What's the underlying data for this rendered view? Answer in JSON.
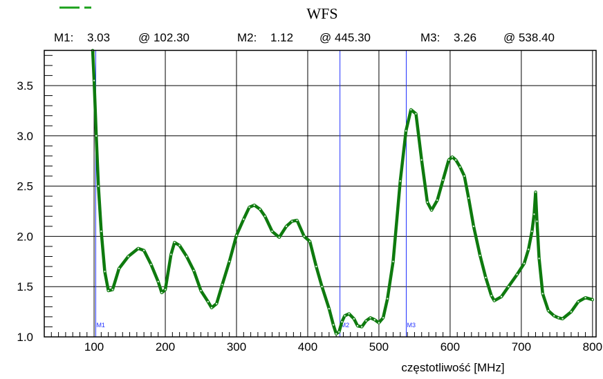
{
  "chart_data": {
    "type": "line",
    "title": "WFS",
    "xlabel": "częstotliwość  [MHz]",
    "ylabel": "",
    "xlim": [
      30,
      805
    ],
    "ylim": [
      1.0,
      3.85
    ],
    "x_ticks": [
      100,
      200,
      300,
      400,
      500,
      600,
      700,
      800
    ],
    "x_tick_labels": [
      "100",
      "200",
      "300",
      "400",
      "500",
      "600",
      "700",
      "800"
    ],
    "y_ticks": [
      1.0,
      1.5,
      2.0,
      2.5,
      3.0,
      3.5
    ],
    "y_tick_labels": [
      "1.0",
      "1.5",
      "2.0",
      "2.5",
      "3.0",
      "3.5"
    ],
    "grid": true,
    "legend": "none",
    "series": [
      {
        "color": "#0e7a0e",
        "x": [
          98,
          100,
          103,
          106,
          110,
          115,
          120,
          126,
          135,
          148,
          162,
          170,
          180,
          190,
          195,
          200,
          208,
          213,
          220,
          230,
          240,
          250,
          260,
          265,
          272,
          280,
          290,
          300,
          310,
          318,
          325,
          333,
          340,
          350,
          360,
          370,
          378,
          385,
          395,
          403,
          412,
          420,
          430,
          436,
          440,
          444,
          448,
          452,
          458,
          465,
          470,
          476,
          482,
          488,
          494,
          500,
          506,
          512,
          520,
          530,
          538,
          545,
          552,
          560,
          568,
          574,
          582,
          590,
          598,
          603,
          608,
          614,
          620,
          626,
          633,
          642,
          650,
          658,
          662,
          672,
          682,
          694,
          704,
          710,
          715,
          718,
          720,
          722,
          725,
          730,
          738,
          746,
          752,
          758,
          770,
          780,
          790,
          800
        ],
        "values": [
          3.85,
          3.55,
          3.0,
          2.5,
          2.05,
          1.65,
          1.46,
          1.47,
          1.68,
          1.8,
          1.88,
          1.86,
          1.72,
          1.55,
          1.44,
          1.47,
          1.82,
          1.94,
          1.91,
          1.8,
          1.66,
          1.46,
          1.35,
          1.29,
          1.33,
          1.52,
          1.75,
          2.01,
          2.17,
          2.29,
          2.31,
          2.27,
          2.2,
          2.05,
          1.99,
          2.1,
          2.15,
          2.16,
          2.0,
          1.95,
          1.7,
          1.5,
          1.28,
          1.12,
          1.03,
          1.05,
          1.15,
          1.21,
          1.23,
          1.18,
          1.11,
          1.1,
          1.16,
          1.19,
          1.17,
          1.14,
          1.19,
          1.38,
          1.75,
          2.55,
          3.05,
          3.26,
          3.22,
          2.76,
          2.34,
          2.26,
          2.36,
          2.56,
          2.76,
          2.79,
          2.76,
          2.69,
          2.6,
          2.38,
          2.1,
          1.81,
          1.59,
          1.41,
          1.36,
          1.4,
          1.5,
          1.62,
          1.73,
          1.87,
          2.05,
          2.22,
          2.44,
          2.15,
          1.78,
          1.43,
          1.26,
          1.21,
          1.19,
          1.18,
          1.25,
          1.35,
          1.39,
          1.37
        ]
      }
    ],
    "markers": [
      {
        "label": "M1",
        "x": 102.3,
        "y": 3.03
      },
      {
        "label": "M2",
        "x": 445.3,
        "y": 1.12
      },
      {
        "label": "M3",
        "x": 538.4,
        "y": 3.26
      }
    ]
  },
  "marker_readouts": [
    {
      "name": "M1:",
      "value": "3.03",
      "at": "@ 102.30"
    },
    {
      "name": "M2:",
      "value": "1.12",
      "at": "@ 445.30"
    },
    {
      "name": "M3:",
      "value": "3.26",
      "at": "@ 538.40"
    }
  ]
}
